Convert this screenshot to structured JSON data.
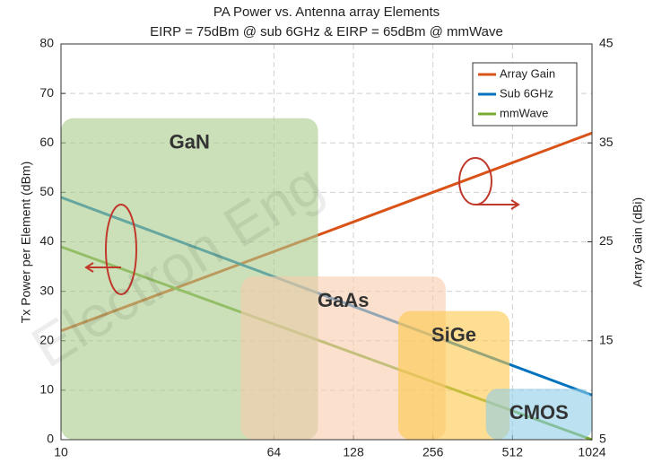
{
  "chart_data": {
    "type": "line",
    "title": "PA Power vs. Antenna array Elements",
    "subtitle": "EIRP = 75dBm @ sub 6GHz & EIRP = 65dBm @ mmWave",
    "y_label": "Tx Power per Element (dBm)",
    "y2_label": "Array Gain (dBi)",
    "watermark": "Electron Eng",
    "x": [
      10,
      1024
    ],
    "xscale": "log",
    "xlim": [
      10,
      1024
    ],
    "xticks": [
      10,
      64,
      128,
      256,
      512,
      1024
    ],
    "ylim": [
      0,
      80
    ],
    "yticks": [
      0,
      10,
      20,
      30,
      40,
      50,
      60,
      70,
      80
    ],
    "y2lim": [
      5,
      45
    ],
    "y2ticks": [
      5,
      15,
      25,
      35,
      45
    ],
    "grid": true,
    "legend": "upper right",
    "series": [
      {
        "name": "Array Gain",
        "color": "#d95319",
        "axis": "y2",
        "values": [
          16,
          36
        ]
      },
      {
        "name": "Sub 6GHz",
        "color": "#0072bd",
        "values": [
          49,
          9
        ]
      },
      {
        "name": "mmWave",
        "color": "#77ac30",
        "values": [
          39,
          0
        ]
      }
    ],
    "regions": [
      {
        "label": "GaN",
        "color": "#a9c98a",
        "x": [
          10,
          94
        ],
        "y": [
          0,
          65
        ]
      },
      {
        "label": "GaAs",
        "color": "#f8cbad",
        "x": [
          48,
          286
        ],
        "y": [
          0,
          33
        ]
      },
      {
        "label": "SiGe",
        "color": "#fdc84a",
        "x": [
          189,
          499
        ],
        "y": [
          0,
          26
        ]
      },
      {
        "label": "CMOS",
        "color": "#8fcde6",
        "x": [
          406,
          1024
        ],
        "y": [
          0,
          10.3
        ]
      }
    ]
  }
}
